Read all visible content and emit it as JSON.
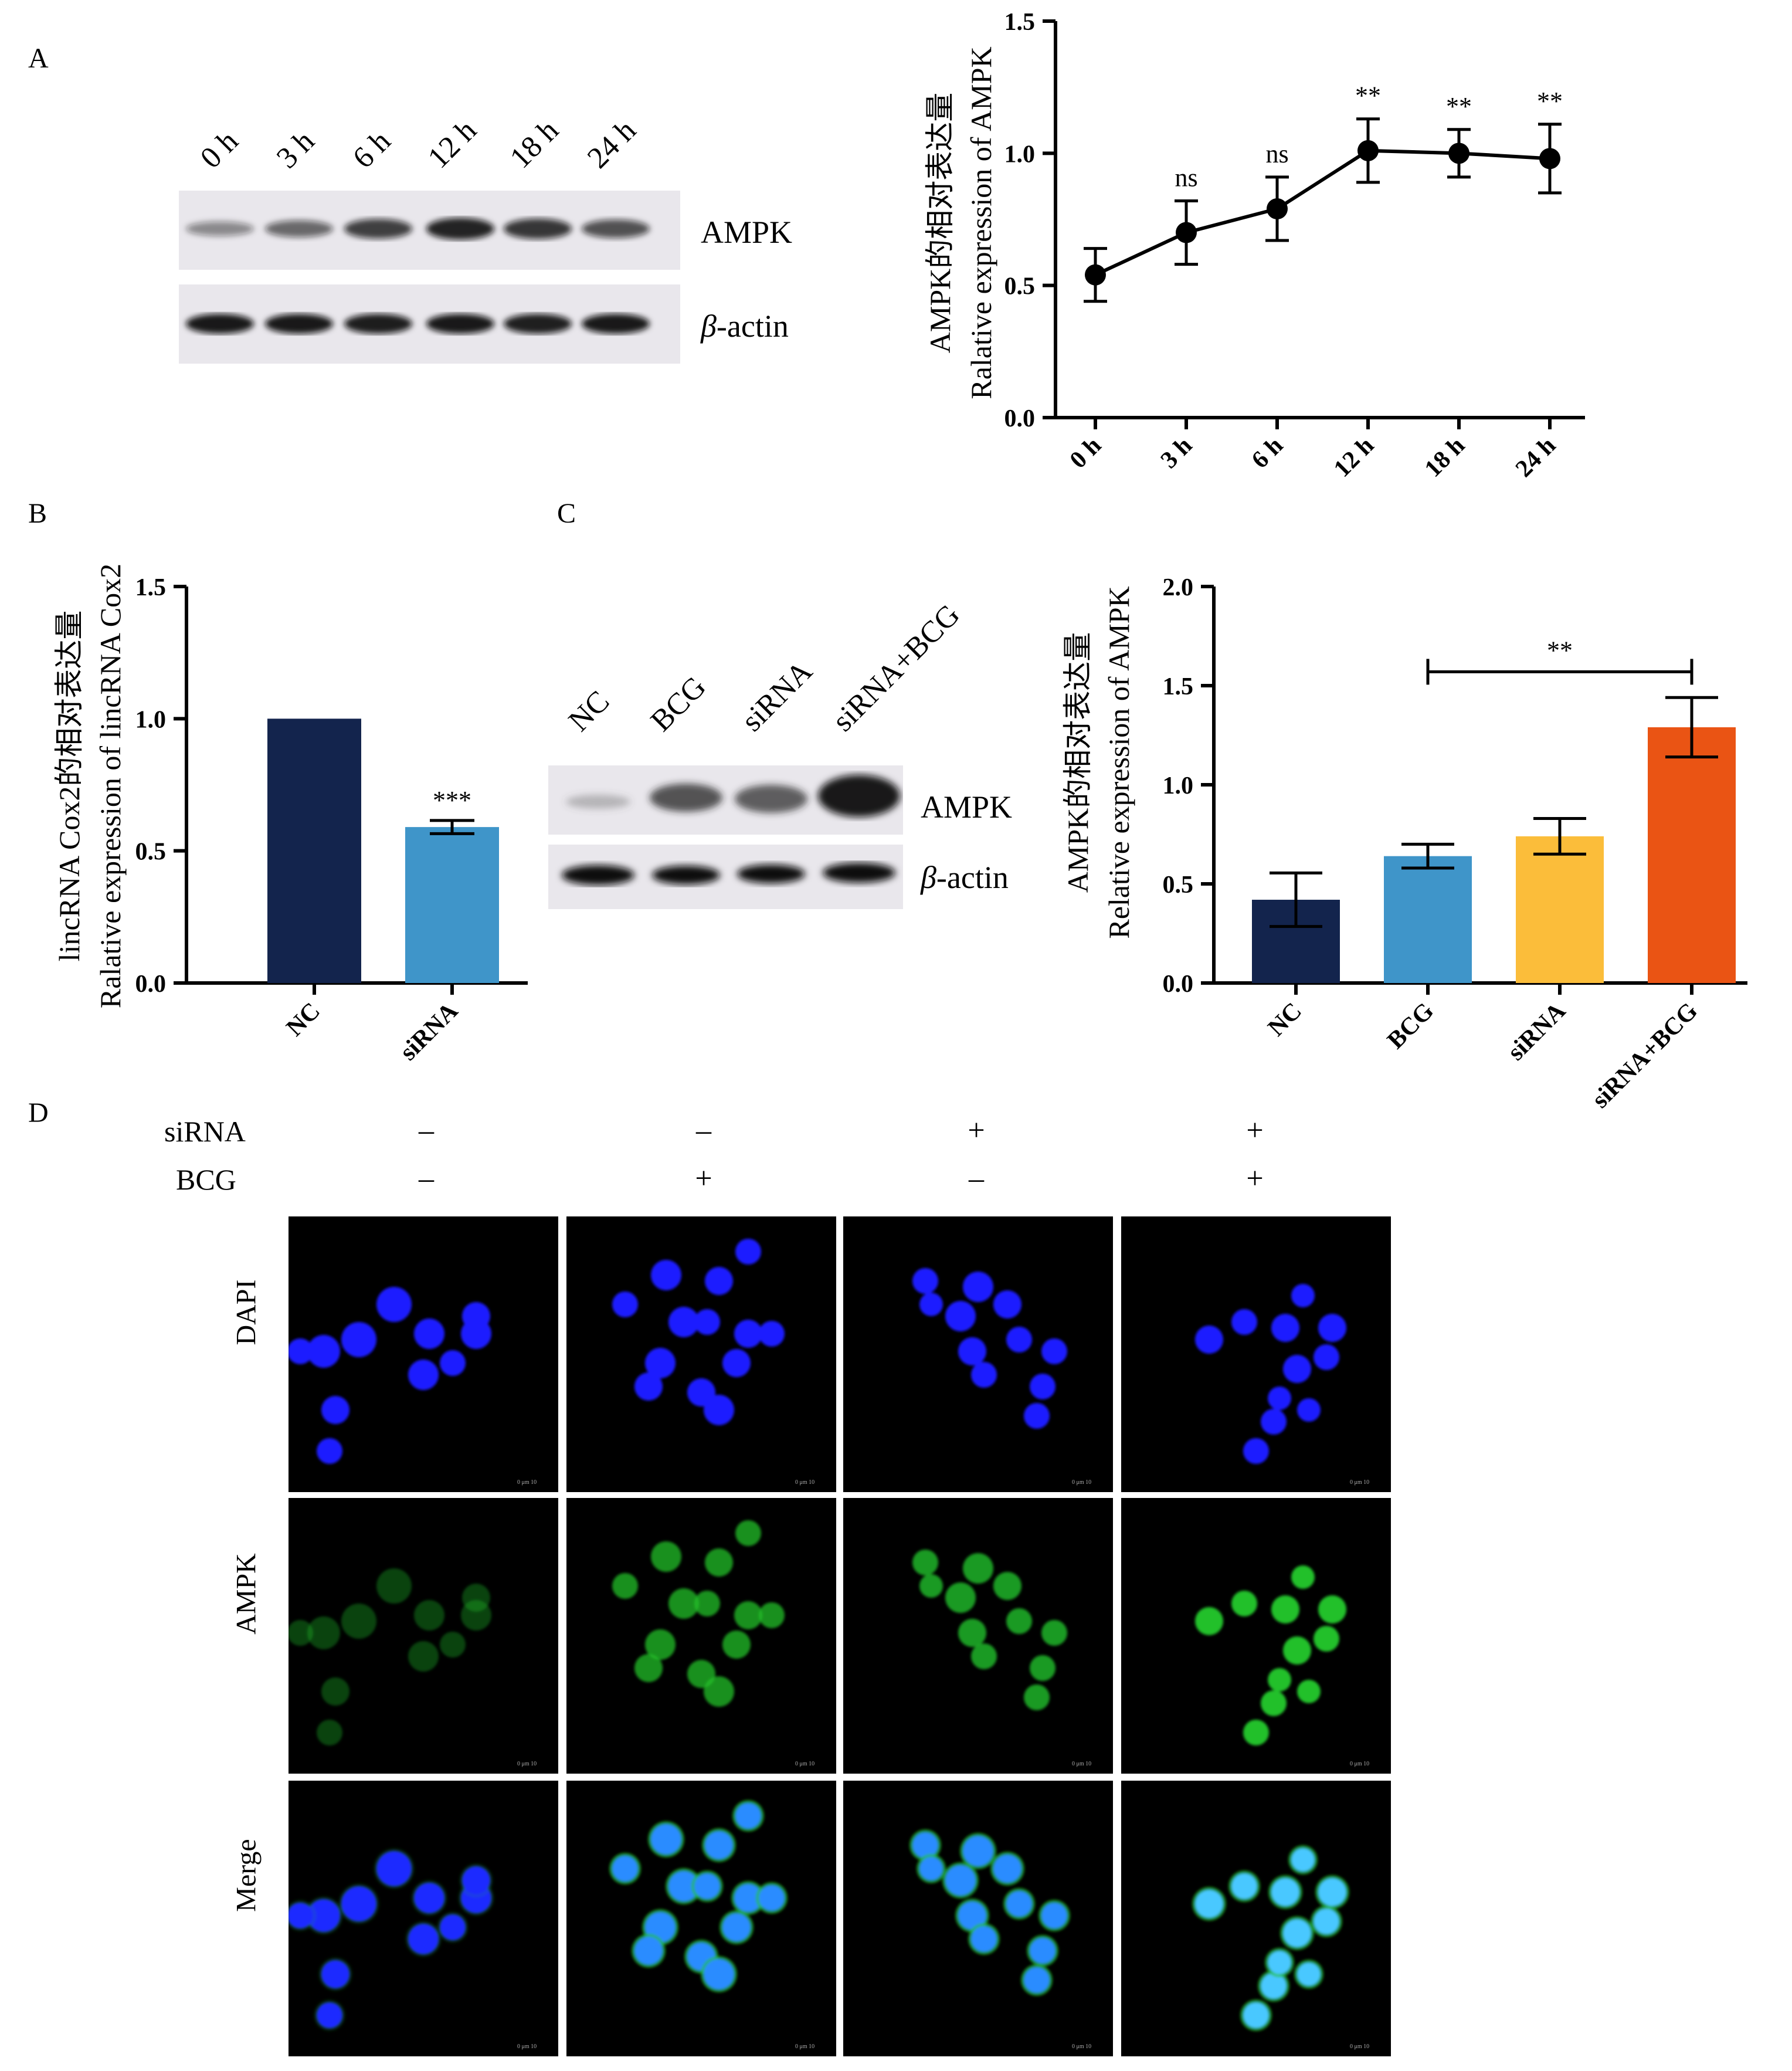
{
  "panels": {
    "A": "A",
    "B": "B",
    "C": "C",
    "D": "D"
  },
  "panel_a": {
    "blot_lanes": [
      "0 h",
      "3 h",
      "6 h",
      "12 h",
      "18 h",
      "24 h"
    ],
    "blot_rows": [
      "AMPK",
      "β-actin"
    ],
    "blot_band_intensity": {
      "AMPK": [
        0.45,
        0.6,
        0.78,
        0.9,
        0.82,
        0.7
      ],
      "β-actin": [
        0.95,
        0.95,
        0.93,
        0.95,
        0.92,
        0.95
      ]
    }
  },
  "panel_d": {
    "conditions": [
      {
        "label": "siRNA",
        "values": [
          "–",
          "–",
          "+",
          "+"
        ]
      },
      {
        "label": "BCG",
        "values": [
          "–",
          "+",
          "–",
          "+"
        ]
      }
    ],
    "rows": [
      "DAPI",
      "AMPK",
      "Merge"
    ],
    "scale_bar": "0 μm 10",
    "colors": {
      "dapi": "#1a1aff",
      "ampk": "#22c02a",
      "merge": "#2a8cff"
    }
  },
  "chart_data": [
    {
      "id": "A",
      "type": "line",
      "categories": [
        "0 h",
        "3 h",
        "6 h",
        "12 h",
        "18 h",
        "24 h"
      ],
      "series": [
        {
          "values": [
            0.54,
            0.7,
            0.79,
            1.01,
            1.0,
            0.98
          ],
          "errors": [
            0.1,
            0.12,
            0.12,
            0.12,
            0.09,
            0.13
          ],
          "color": "#000000"
        }
      ],
      "annotations": [
        "",
        "ns",
        "ns",
        "**",
        "**",
        "**"
      ],
      "ylabel_cn": "AMPK的相对表达量",
      "ylabel_en": "Ralative expression of AMPK",
      "ylim": [
        0,
        1.5
      ],
      "yticks": [
        "0.0",
        "0.5",
        "1.0",
        "1.5"
      ]
    },
    {
      "id": "B",
      "type": "bar",
      "categories": [
        "NC",
        "siRNA"
      ],
      "series": [
        {
          "values": [
            1.0,
            0.59
          ],
          "errors": [
            0,
            0.025
          ],
          "colors": [
            "#13244d",
            "#3f95c9"
          ]
        }
      ],
      "annotations": [
        "",
        "***"
      ],
      "ylabel_cn": "lincRNA Cox2的相对表达量",
      "ylabel_en": "Ralative expression of lincRNA Cox2",
      "ylim": [
        0,
        1.5
      ],
      "yticks": [
        "0.0",
        "0.5",
        "1.0",
        "1.5"
      ]
    },
    {
      "id": "C",
      "type": "bar",
      "categories": [
        "NC",
        "BCG",
        "siRNA",
        "siRNA+BCG"
      ],
      "series": [
        {
          "values": [
            0.42,
            0.64,
            0.74,
            1.29
          ],
          "errors": [
            0.135,
            0.06,
            0.09,
            0.15
          ],
          "colors": [
            "#13244d",
            "#3f95c9",
            "#fbbd3a",
            "#ea5414"
          ]
        }
      ],
      "significance": {
        "label": "**",
        "from": 1,
        "to": 3
      },
      "ylabel_cn": "AMPK的相对表达量",
      "ylabel_en": "Relative expression of AMPK",
      "ylim": [
        0,
        2.0
      ],
      "yticks": [
        "0.0",
        "0.5",
        "1.0",
        "1.5",
        "2.0"
      ]
    }
  ]
}
